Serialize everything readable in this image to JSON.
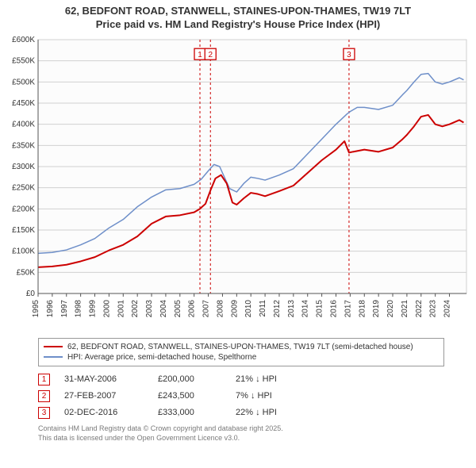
{
  "title_line1": "62, BEDFONT ROAD, STANWELL, STAINES-UPON-THAMES, TW19 7LT",
  "title_line2": "Price paid vs. HM Land Registry's House Price Index (HPI)",
  "chart": {
    "type": "line",
    "background_color": "#ffffff",
    "plot_bg": "#fcfcfc",
    "grid_color": "#d0d0d0",
    "axis_color": "#555555",
    "tick_font_size": 10,
    "x_years": [
      1995,
      1996,
      1997,
      1998,
      1999,
      2000,
      2001,
      2002,
      2003,
      2004,
      2005,
      2006,
      2007,
      2008,
      2009,
      2010,
      2011,
      2012,
      2013,
      2014,
      2015,
      2016,
      2017,
      2018,
      2019,
      2020,
      2021,
      2022,
      2023,
      2024
    ],
    "xlim": [
      1995,
      2025.2
    ],
    "ylim": [
      0,
      600000
    ],
    "ytick_step": 50000,
    "ytick_labels": [
      "£0",
      "£50K",
      "£100K",
      "£150K",
      "£200K",
      "£250K",
      "£300K",
      "£350K",
      "£400K",
      "£450K",
      "£500K",
      "£550K",
      "£600K"
    ],
    "series": [
      {
        "name": "hpi",
        "color": "#6e8fc9",
        "width": 1.5,
        "points": [
          [
            1995,
            95000
          ],
          [
            1996,
            97000
          ],
          [
            1997,
            103000
          ],
          [
            1998,
            115000
          ],
          [
            1999,
            130000
          ],
          [
            2000,
            155000
          ],
          [
            2001,
            175000
          ],
          [
            2002,
            205000
          ],
          [
            2003,
            228000
          ],
          [
            2004,
            245000
          ],
          [
            2005,
            248000
          ],
          [
            2006,
            258000
          ],
          [
            2006.5,
            270000
          ],
          [
            2007,
            290000
          ],
          [
            2007.4,
            305000
          ],
          [
            2007.8,
            300000
          ],
          [
            2008,
            285000
          ],
          [
            2008.5,
            248000
          ],
          [
            2009,
            240000
          ],
          [
            2009.5,
            260000
          ],
          [
            2010,
            275000
          ],
          [
            2010.5,
            272000
          ],
          [
            2011,
            268000
          ],
          [
            2012,
            280000
          ],
          [
            2013,
            295000
          ],
          [
            2014,
            330000
          ],
          [
            2015,
            365000
          ],
          [
            2016,
            400000
          ],
          [
            2016.8,
            425000
          ],
          [
            2017,
            430000
          ],
          [
            2017.5,
            440000
          ],
          [
            2018,
            440000
          ],
          [
            2019,
            435000
          ],
          [
            2020,
            445000
          ],
          [
            2020.7,
            470000
          ],
          [
            2021,
            480000
          ],
          [
            2021.5,
            500000
          ],
          [
            2022,
            518000
          ],
          [
            2022.5,
            520000
          ],
          [
            2023,
            500000
          ],
          [
            2023.5,
            495000
          ],
          [
            2024,
            500000
          ],
          [
            2024.7,
            510000
          ],
          [
            2025,
            505000
          ]
        ]
      },
      {
        "name": "price_paid",
        "color": "#cc0000",
        "width": 2,
        "points": [
          [
            1995,
            62000
          ],
          [
            1996,
            64000
          ],
          [
            1997,
            68000
          ],
          [
            1998,
            76000
          ],
          [
            1999,
            86000
          ],
          [
            2000,
            102000
          ],
          [
            2001,
            115000
          ],
          [
            2002,
            135000
          ],
          [
            2003,
            165000
          ],
          [
            2004,
            182000
          ],
          [
            2005,
            185000
          ],
          [
            2006,
            192000
          ],
          [
            2006.4,
            200000
          ],
          [
            2006.8,
            212000
          ],
          [
            2007.15,
            243500
          ],
          [
            2007.5,
            272000
          ],
          [
            2007.9,
            280000
          ],
          [
            2008.3,
            260000
          ],
          [
            2008.7,
            215000
          ],
          [
            2009,
            210000
          ],
          [
            2009.5,
            225000
          ],
          [
            2010,
            238000
          ],
          [
            2010.5,
            235000
          ],
          [
            2011,
            230000
          ],
          [
            2012,
            242000
          ],
          [
            2013,
            255000
          ],
          [
            2014,
            285000
          ],
          [
            2015,
            315000
          ],
          [
            2016,
            340000
          ],
          [
            2016.6,
            360000
          ],
          [
            2016.92,
            333000
          ],
          [
            2017.2,
            335000
          ],
          [
            2018,
            340000
          ],
          [
            2019,
            335000
          ],
          [
            2020,
            345000
          ],
          [
            2020.7,
            365000
          ],
          [
            2021,
            375000
          ],
          [
            2021.5,
            395000
          ],
          [
            2022,
            418000
          ],
          [
            2022.5,
            422000
          ],
          [
            2023,
            400000
          ],
          [
            2023.5,
            395000
          ],
          [
            2024,
            400000
          ],
          [
            2024.7,
            410000
          ],
          [
            2025,
            404000
          ]
        ]
      }
    ],
    "sale_markers": [
      {
        "num": "1",
        "x": 2006.41,
        "y_top": 0.06
      },
      {
        "num": "2",
        "x": 2007.15,
        "y_top": 0.06
      },
      {
        "num": "3",
        "x": 2016.92,
        "y_top": 0.06
      }
    ],
    "marker_line_color": "#cc0000",
    "marker_line_dash": "3 3",
    "marker_box_border": "#cc0000",
    "marker_box_fill": "#ffffff"
  },
  "legend": {
    "items": [
      {
        "label": "62, BEDFONT ROAD, STANWELL, STAINES-UPON-THAMES, TW19 7LT (semi-detached house)",
        "color": "#cc0000",
        "width": 2
      },
      {
        "label": "HPI: Average price, semi-detached house, Spelthorne",
        "color": "#6e8fc9",
        "width": 2
      }
    ]
  },
  "sales": [
    {
      "num": "1",
      "date": "31-MAY-2006",
      "price": "£200,000",
      "diff": "21% ↓ HPI"
    },
    {
      "num": "2",
      "date": "27-FEB-2007",
      "price": "£243,500",
      "diff": "7% ↓ HPI"
    },
    {
      "num": "3",
      "date": "02-DEC-2016",
      "price": "£333,000",
      "diff": "22% ↓ HPI"
    }
  ],
  "footer_line1": "Contains HM Land Registry data © Crown copyright and database right 2025.",
  "footer_line2": "This data is licensed under the Open Government Licence v3.0."
}
